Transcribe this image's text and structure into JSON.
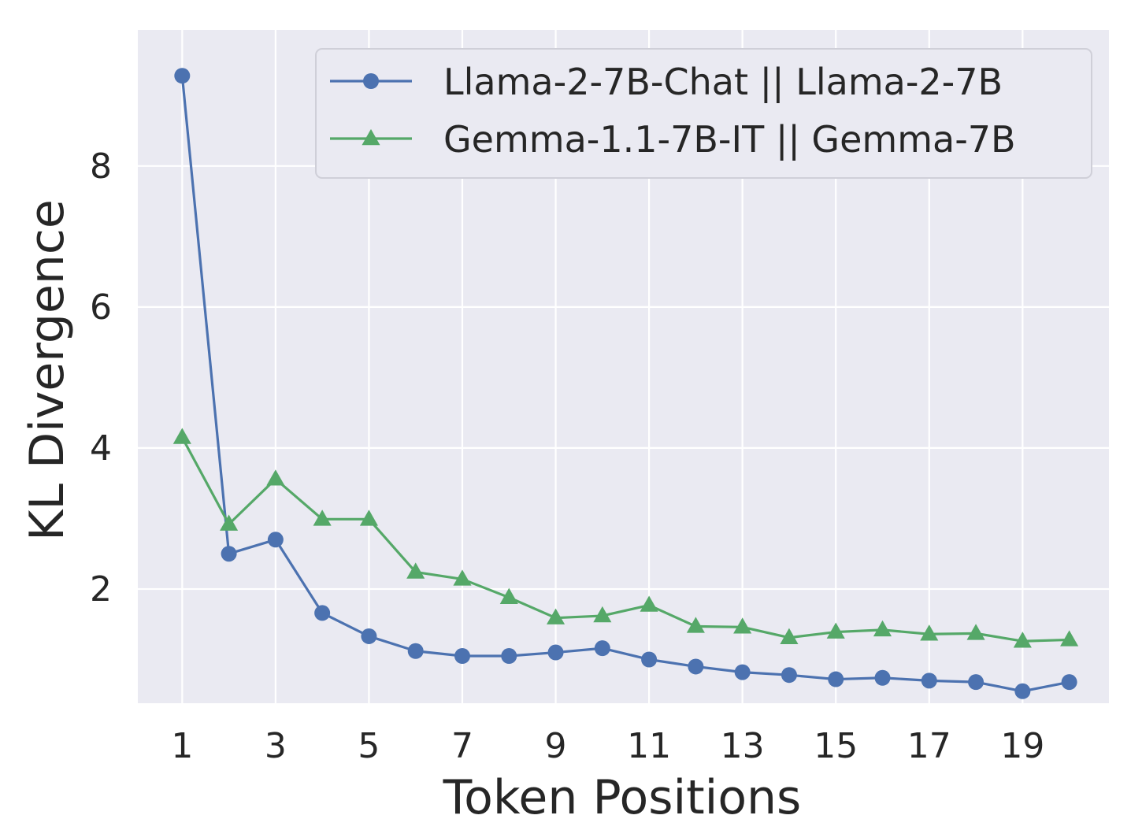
{
  "chart_data": {
    "type": "line",
    "xlabel": "Token Positions",
    "ylabel": "KL Divergence",
    "x": [
      1,
      2,
      3,
      4,
      5,
      6,
      7,
      8,
      9,
      10,
      11,
      12,
      13,
      14,
      15,
      16,
      17,
      18,
      19,
      20
    ],
    "xticks": [
      1,
      3,
      5,
      7,
      9,
      11,
      13,
      15,
      17,
      19
    ],
    "yticks": [
      2,
      4,
      6,
      8
    ],
    "xlim": [
      0.05,
      20.85
    ],
    "ylim": [
      0.38,
      9.93
    ],
    "grid": true,
    "legend_position": "top-right",
    "series": [
      {
        "name": "Llama-2-7B-Chat || Llama-2-7B",
        "color": "#4c72b0",
        "marker": "circle",
        "values": [
          9.28,
          2.5,
          2.7,
          1.66,
          1.33,
          1.12,
          1.05,
          1.05,
          1.1,
          1.16,
          1.0,
          0.9,
          0.82,
          0.78,
          0.72,
          0.74,
          0.7,
          0.68,
          0.55,
          0.68
        ]
      },
      {
        "name": "Gemma-1.1-7B-IT || Gemma-7B",
        "color": "#55a868",
        "marker": "triangle",
        "values": [
          4.15,
          2.92,
          3.56,
          2.99,
          2.99,
          2.24,
          2.14,
          1.88,
          1.59,
          1.62,
          1.77,
          1.47,
          1.46,
          1.31,
          1.39,
          1.42,
          1.36,
          1.37,
          1.26,
          1.28
        ]
      }
    ],
    "colors": {
      "plot_background": "#eaeaf2",
      "grid": "#ffffff",
      "text": "#262626"
    }
  }
}
